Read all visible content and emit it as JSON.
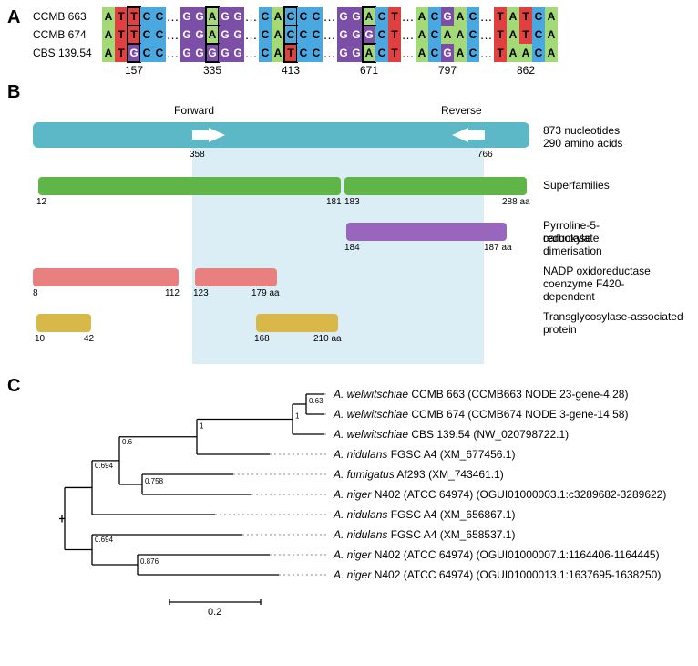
{
  "panel_labels": {
    "A": "A",
    "B": "B",
    "C": "C"
  },
  "alignment": {
    "row_labels": [
      "CCMB 663",
      "CCMB 674",
      "CBS 139.54"
    ],
    "positions": [
      "157",
      "335",
      "413",
      "671",
      "797",
      "862"
    ],
    "blocks": [
      {
        "width": 5,
        "box_col": 2,
        "cells": [
          [
            "A",
            "T",
            "T",
            "C",
            "C"
          ],
          [
            "A",
            "T",
            "T",
            "C",
            "C"
          ],
          [
            "A",
            "T",
            "G",
            "C",
            "C"
          ]
        ]
      },
      {
        "width": 5,
        "box_col": 2,
        "cells": [
          [
            "G",
            "G",
            "A",
            "G",
            "G"
          ],
          [
            "G",
            "G",
            "A",
            "G",
            "G"
          ],
          [
            "G",
            "G",
            "G",
            "G",
            "G"
          ]
        ]
      },
      {
        "width": 5,
        "box_col": 2,
        "cells": [
          [
            "C",
            "A",
            "C",
            "C",
            "C"
          ],
          [
            "C",
            "A",
            "C",
            "C",
            "C"
          ],
          [
            "C",
            "A",
            "T",
            "C",
            "C"
          ]
        ]
      },
      {
        "width": 5,
        "box_col": 2,
        "cells": [
          [
            "G",
            "G",
            "A",
            "C",
            "T"
          ],
          [
            "G",
            "G",
            "G",
            "C",
            "T"
          ],
          [
            "G",
            "G",
            "A",
            "C",
            "T"
          ]
        ]
      },
      {
        "width": 5,
        "box_col": -1,
        "cells": [
          [
            "A",
            "C",
            "G",
            "A",
            "C"
          ],
          [
            "A",
            "C",
            "A",
            "A",
            "C"
          ],
          [
            "A",
            "C",
            "G",
            "A",
            "C"
          ]
        ]
      },
      {
        "width": 5,
        "box_col": -1,
        "cells": [
          [
            "T",
            "A",
            "T",
            "C",
            "A"
          ],
          [
            "T",
            "A",
            "T",
            "C",
            "A"
          ],
          [
            "T",
            "A",
            "A",
            "C",
            "A"
          ]
        ]
      }
    ]
  },
  "panelB": {
    "title_fwd": "Forward",
    "title_rev": "Reverse",
    "caption_main1": "873 nucleotides",
    "caption_main2": "290 amino acids",
    "num_fwd": "358",
    "num_rev": "766",
    "superfam_label": "Superfamilies",
    "superfam_n1": "12",
    "superfam_n2": "181",
    "superfam_n3": "183",
    "superfam_n4": "288 aa",
    "pyrroline_lbl1": "Pyrroline-5-carboxylate",
    "pyrroline_lbl2": "reductase dimerisation",
    "pyr_n1": "184",
    "pyr_n2": "187 aa",
    "nadp_lbl1": "NADP oxidoreductase",
    "nadp_lbl2": "coenzyme F420-dependent",
    "nadp_n1": "8",
    "nadp_n2": "112",
    "nadp_n3": "123",
    "nadp_n4": "179 aa",
    "trans_lbl1": "Transglycosylase-associated",
    "trans_lbl2": "protein",
    "trans_n1": "10",
    "trans_n2": "42",
    "trans_n3": "168",
    "trans_n4": "210 aa"
  },
  "tree": {
    "scale_label": "0.2",
    "taxa": [
      {
        "name": "A. welwitschiae",
        "rest": " CCMB 663 (CCMB663 NODE 23-gene-4.28)"
      },
      {
        "name": "A. welwitschiae",
        "rest": " CCMB 674 (CCMB674 NODE 3-gene-14.58)"
      },
      {
        "name": "A. welwitschiae",
        "rest": " CBS 139.54 (NW_020798722.1)"
      },
      {
        "name": "A. nidulans",
        "rest": " FGSC A4 (XM_677456.1)"
      },
      {
        "name": "A. fumigatus",
        "rest": " Af293 (XM_743461.1)"
      },
      {
        "name": "A. niger",
        "rest": " N402 (ATCC 64974) (OGUI01000003.1:c3289682-3289622)"
      },
      {
        "name": "A. nidulans",
        "rest": " FGSC A4 (XM_656867.1)"
      },
      {
        "name": "A. nidulans",
        "rest": " FGSC A4 (XM_658537.1)"
      },
      {
        "name": "A. niger",
        "rest": " N402 (ATCC 64974) (OGUI01000007.1:1164406-1164445)"
      },
      {
        "name": "A. niger",
        "rest": " N402 (ATCC 64974) (OGUI01000013.1:1637695-1638250)"
      }
    ],
    "boots": [
      "0.63",
      "1",
      "1",
      "0.6",
      "0.758",
      "0.694",
      "0.694",
      "0.876"
    ]
  },
  "colors": {
    "A": "#a3d977",
    "C": "#4aa8e0",
    "G": "#7b4ea8",
    "T": "#e04040",
    "cyan": "#5cb8c7",
    "green": "#5fb548",
    "purple": "#9966bd",
    "pink": "#e88080",
    "gold": "#d9b84a",
    "shade": "#dceef5"
  }
}
